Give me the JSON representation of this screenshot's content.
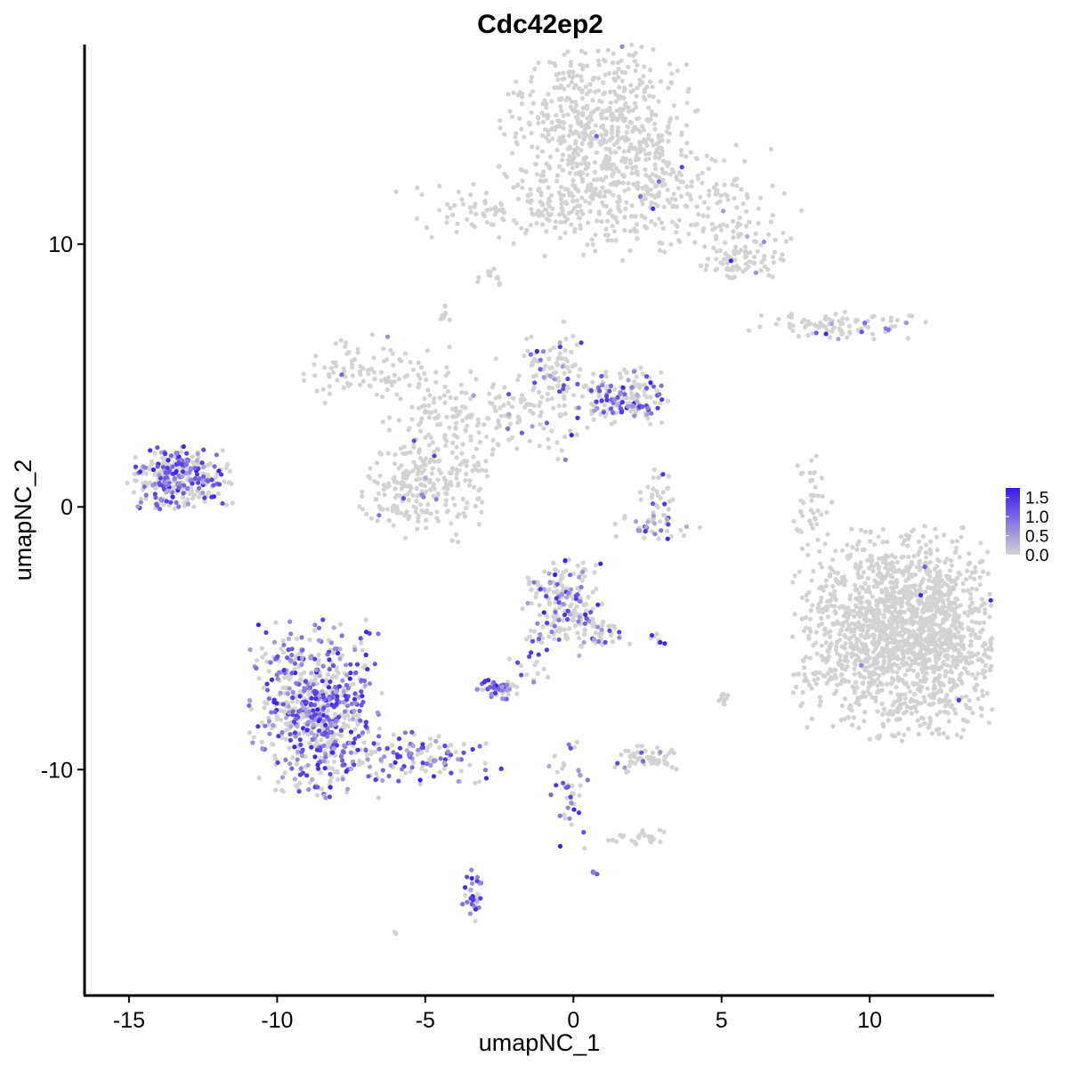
{
  "chart_data": {
    "type": "scatter",
    "title": "Cdc42ep2",
    "xlabel": "umapNC_1",
    "ylabel": "umapNC_2",
    "xlim": [
      -16.5,
      14.2
    ],
    "ylim": [
      -18.6,
      17.6
    ],
    "x_ticks": [
      -15,
      -10,
      -5,
      0,
      5,
      10
    ],
    "x_tick_labels": [
      "-15",
      "-10",
      "-5",
      "0",
      "5",
      "10"
    ],
    "y_ticks": [
      10,
      0,
      -10
    ],
    "y_tick_labels": [
      "10",
      "0",
      "-10"
    ],
    "grid": false,
    "legend": {
      "position": "right",
      "type": "colorbar",
      "labels": [
        "1.5",
        "1.0",
        "0.5",
        "0.0"
      ],
      "values": [
        1.5,
        1.0,
        0.5,
        0.0
      ],
      "max_value": 1.75,
      "low_color": "#d3d3d3",
      "high_color": "#3a17f0"
    },
    "point_color_low": "#d3d3d3",
    "point_color_high": "#3a17f0",
    "clusters": [
      {
        "id": "top-blob",
        "center": [
          0.8,
          14.1
        ],
        "spread": [
          1.5,
          1.8
        ],
        "count": 700,
        "expressed_fraction": 0.005
      },
      {
        "id": "top-right-arm",
        "center": [
          4.3,
          11.7
        ],
        "spread": [
          1.5,
          1.0
        ],
        "count": 170,
        "expressed_fraction": 0.02
      },
      {
        "id": "top-right-tail",
        "center": [
          5.7,
          9.6
        ],
        "spread": [
          0.7,
          0.45
        ],
        "count": 80,
        "expressed_fraction": 0.02
      },
      {
        "id": "top-left-streak",
        "center": [
          -1.9,
          11.3
        ],
        "spread": [
          1.8,
          0.55
        ],
        "count": 110,
        "expressed_fraction": 0.0
      },
      {
        "id": "top-mid-dots",
        "center": [
          0.5,
          11.3
        ],
        "spread": [
          0.9,
          0.9
        ],
        "count": 50,
        "expressed_fraction": 0.0
      },
      {
        "id": "small-top-mid",
        "center": [
          -2.8,
          8.8
        ],
        "spread": [
          0.25,
          0.15
        ],
        "count": 12,
        "expressed_fraction": 0.0
      },
      {
        "id": "small-top-left",
        "center": [
          -4.4,
          7.3
        ],
        "spread": [
          0.15,
          0.2
        ],
        "count": 10,
        "expressed_fraction": 0.0
      },
      {
        "id": "right-streak",
        "center": [
          8.9,
          6.9
        ],
        "spread": [
          1.3,
          0.25
        ],
        "count": 90,
        "expressed_fraction": 0.1
      },
      {
        "id": "mid-left-top",
        "center": [
          -6.9,
          5.2
        ],
        "spread": [
          1.0,
          0.6
        ],
        "count": 90,
        "expressed_fraction": 0.02
      },
      {
        "id": "mid-center-spine",
        "center": [
          -4.2,
          3.6
        ],
        "spread": [
          1.0,
          1.3
        ],
        "count": 130,
        "expressed_fraction": 0.03
      },
      {
        "id": "mid-left-lobe",
        "center": [
          -5.2,
          0.7
        ],
        "spread": [
          1.0,
          0.9
        ],
        "count": 230,
        "expressed_fraction": 0.06
      },
      {
        "id": "mid-right-top",
        "center": [
          -0.6,
          5.3
        ],
        "spread": [
          0.6,
          0.8
        ],
        "count": 90,
        "expressed_fraction": 0.2
      },
      {
        "id": "mid-right-lobe",
        "center": [
          1.7,
          4.2
        ],
        "spread": [
          0.7,
          0.5
        ],
        "count": 180,
        "expressed_fraction": 0.35
      },
      {
        "id": "mid-connector",
        "center": [
          -1.5,
          3.4
        ],
        "spread": [
          1.1,
          0.8
        ],
        "count": 90,
        "expressed_fraction": 0.1
      },
      {
        "id": "far-left",
        "center": [
          -13.3,
          1.1
        ],
        "spread": [
          0.8,
          0.55
        ],
        "count": 320,
        "expressed_fraction": 0.45
      },
      {
        "id": "center-right-small",
        "center": [
          2.9,
          0.3
        ],
        "spread": [
          0.3,
          0.55
        ],
        "count": 30,
        "expressed_fraction": 0.1
      },
      {
        "id": "center-right-arc",
        "center": [
          2.8,
          -0.7
        ],
        "spread": [
          0.7,
          0.25
        ],
        "count": 40,
        "expressed_fraction": 0.5
      },
      {
        "id": "right-small-streak",
        "center": [
          8.1,
          0.2
        ],
        "spread": [
          0.3,
          0.9
        ],
        "count": 45,
        "expressed_fraction": 0.0
      },
      {
        "id": "large-right",
        "center": [
          11.3,
          -4.8
        ],
        "spread": [
          1.7,
          1.8
        ],
        "count": 1700,
        "expressed_fraction": 0.004
      },
      {
        "id": "large-right-fringe",
        "center": [
          9.2,
          -5.0
        ],
        "spread": [
          0.6,
          1.0
        ],
        "count": 60,
        "expressed_fraction": 0.0
      },
      {
        "id": "center-lower",
        "center": [
          -0.4,
          -3.6
        ],
        "spread": [
          0.6,
          0.7
        ],
        "count": 200,
        "expressed_fraction": 0.3
      },
      {
        "id": "center-lower-tail",
        "center": [
          1.0,
          -4.8
        ],
        "spread": [
          0.5,
          0.4
        ],
        "count": 40,
        "expressed_fraction": 0.35
      },
      {
        "id": "center-lower-arm",
        "center": [
          -1.3,
          -5.7
        ],
        "spread": [
          0.5,
          0.6
        ],
        "count": 20,
        "expressed_fraction": 0.4
      },
      {
        "id": "small-center-left",
        "center": [
          -2.5,
          -6.9
        ],
        "spread": [
          0.35,
          0.2
        ],
        "count": 50,
        "expressed_fraction": 0.5
      },
      {
        "id": "bottom-left-large",
        "center": [
          -8.7,
          -7.7
        ],
        "spread": [
          1.0,
          1.5
        ],
        "count": 700,
        "expressed_fraction": 0.5
      },
      {
        "id": "bottom-left-tail",
        "center": [
          -5.4,
          -9.5
        ],
        "spread": [
          1.3,
          0.5
        ],
        "count": 130,
        "expressed_fraction": 0.6
      },
      {
        "id": "small-right-mid",
        "center": [
          2.9,
          -5.0
        ],
        "spread": [
          0.2,
          0.1
        ],
        "count": 8,
        "expressed_fraction": 0.5
      },
      {
        "id": "small-far-right",
        "center": [
          5.1,
          -7.2
        ],
        "spread": [
          0.1,
          0.2
        ],
        "count": 10,
        "expressed_fraction": 0.0
      },
      {
        "id": "small-center-bottom",
        "center": [
          2.4,
          -9.6
        ],
        "spread": [
          0.5,
          0.25
        ],
        "count": 60,
        "expressed_fraction": 0.05
      },
      {
        "id": "center-bottom-streak",
        "center": [
          -0.2,
          -10.7
        ],
        "spread": [
          0.3,
          1.0
        ],
        "count": 45,
        "expressed_fraction": 0.4
      },
      {
        "id": "small-bottom-right",
        "center": [
          2.3,
          -12.6
        ],
        "spread": [
          0.5,
          0.15
        ],
        "count": 25,
        "expressed_fraction": 0.0
      },
      {
        "id": "bottom-small-col",
        "center": [
          -3.4,
          -14.9
        ],
        "spread": [
          0.15,
          0.5
        ],
        "count": 35,
        "expressed_fraction": 0.5
      },
      {
        "id": "tiny-bottom-right",
        "center": [
          0.7,
          -14.0
        ],
        "spread": [
          0.05,
          0.05
        ],
        "count": 5,
        "expressed_fraction": 0.8
      },
      {
        "id": "tiny-bottom-left",
        "center": [
          -6.0,
          -16.2
        ],
        "spread": [
          0.05,
          0.05
        ],
        "count": 4,
        "expressed_fraction": 0.0
      }
    ]
  }
}
